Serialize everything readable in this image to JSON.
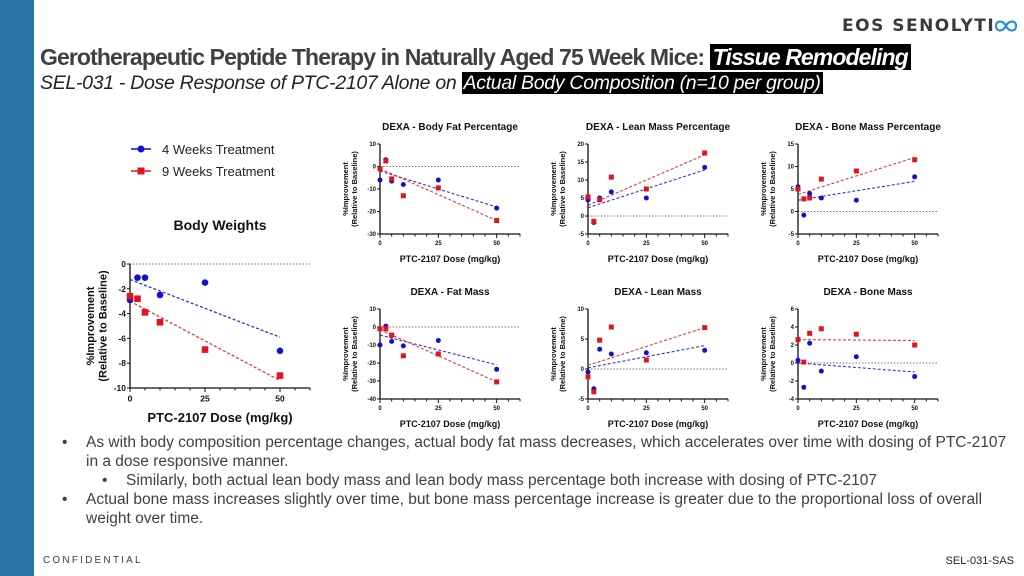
{
  "header": {
    "logo_text": "EOS SENOLYTI",
    "title_plain": "Gerotherapeutic Peptide Therapy in Naturally Aged 75 Week Mice: ",
    "title_highlight": "Tissue Remodeling",
    "subtitle_plain": "SEL-031 - Dose Response of PTC-2107 Alone on ",
    "subtitle_highlight": "Actual Body Composition (n=10 per group)"
  },
  "legend": {
    "items": [
      {
        "label": "4 Weeks Treatment",
        "color": "#1010D0",
        "marker": "circle"
      },
      {
        "label": "9 Weeks Treatment",
        "color": "#E0141E",
        "marker": "square"
      }
    ]
  },
  "chart_data": [
    {
      "id": "body-weights",
      "type": "scatter",
      "title": "Body Weights",
      "xlabel": "PTC-2107 Dose (mg/kg)",
      "ylabel": "%Improvement (Relative to Baseline)",
      "xlim": [
        0,
        60
      ],
      "xticks": [
        0,
        25,
        50
      ],
      "ylim": [
        -10,
        0
      ],
      "yticks": [
        0,
        -2,
        -4,
        -6,
        -8,
        -10
      ],
      "reference_line": 0,
      "x": [
        0,
        2.5,
        5,
        10,
        25,
        50
      ],
      "series": [
        {
          "name": "4 Weeks Treatment",
          "color": "#1010D0",
          "marker": "circle",
          "values": [
            -2.9,
            -1.1,
            -1.1,
            -2.5,
            -1.5,
            -7.0
          ],
          "trend": [
            -1.25,
            -5.9
          ]
        },
        {
          "name": "9 Weeks Treatment",
          "color": "#E0141E",
          "marker": "square",
          "values": [
            -2.6,
            -2.8,
            -3.9,
            -4.7,
            -6.9,
            -9.0
          ],
          "trend": [
            -3.0,
            -9.4
          ]
        }
      ]
    },
    {
      "id": "dexa-body-fat-percentage",
      "type": "scatter",
      "title": "DEXA - Body Fat Percentage",
      "xlabel": "PTC-2107 Dose (mg/kg)",
      "ylabel": "%Improvement (Relative to Baseline)",
      "xlim": [
        0,
        60
      ],
      "xticks": [
        0,
        25,
        50
      ],
      "ylim": [
        -30,
        10
      ],
      "yticks": [
        10,
        0,
        -10,
        -20,
        -30
      ],
      "reference_line": 0,
      "x": [
        0,
        2.5,
        5,
        10,
        25,
        50
      ],
      "series": [
        {
          "name": "4 Weeks Treatment",
          "color": "#1010D0",
          "marker": "circle",
          "values": [
            -6,
            3,
            -6.5,
            -8,
            -6,
            -18.5
          ],
          "trend": [
            -2.0,
            -18.0
          ]
        },
        {
          "name": "9 Weeks Treatment",
          "color": "#E0141E",
          "marker": "square",
          "values": [
            -1,
            2.5,
            -5.5,
            -13,
            -9.5,
            -24
          ],
          "trend": [
            -1.0,
            -24.0
          ]
        }
      ]
    },
    {
      "id": "dexa-lean-mass-percentage",
      "type": "scatter",
      "title": "DEXA - Lean Mass Percentage",
      "xlabel": "PTC-2107 Dose (mg/kg)",
      "ylabel": "%Improvement (Relative to Baseline)",
      "xlim": [
        0,
        60
      ],
      "xticks": [
        0,
        25,
        50
      ],
      "ylim": [
        -5,
        20
      ],
      "yticks": [
        20,
        15,
        10,
        5,
        0,
        -5
      ],
      "reference_line": 0,
      "x": [
        0,
        2.5,
        5,
        10,
        25,
        50
      ],
      "series": [
        {
          "name": "4 Weeks Treatment",
          "color": "#1010D0",
          "marker": "circle",
          "values": [
            4.5,
            -1.8,
            5,
            6.7,
            5,
            13.5
          ],
          "trend": [
            2.3,
            12.8
          ]
        },
        {
          "name": "9 Weeks Treatment",
          "color": "#E0141E",
          "marker": "square",
          "values": [
            5.3,
            -1.5,
            4.5,
            10.8,
            7.5,
            17.5
          ],
          "trend": [
            3.0,
            17.0
          ]
        }
      ]
    },
    {
      "id": "dexa-bone-mass-percentage",
      "type": "scatter",
      "title": "DEXA - Bone Mass Percentage",
      "xlabel": "PTC-2107 Dose (mg/kg)",
      "ylabel": "%Improvement (Relative to Baseline)",
      "xlim": [
        0,
        60
      ],
      "xticks": [
        0,
        25,
        50
      ],
      "ylim": [
        -5,
        15
      ],
      "yticks": [
        15,
        10,
        5,
        0,
        -5
      ],
      "reference_line": 0,
      "x": [
        0,
        2.5,
        5,
        10,
        25,
        50
      ],
      "series": [
        {
          "name": "4 Weeks Treatment",
          "color": "#1010D0",
          "marker": "circle",
          "values": [
            5.5,
            -0.8,
            4,
            3,
            2.5,
            7.7
          ],
          "trend": [
            2.5,
            6.7
          ]
        },
        {
          "name": "9 Weeks Treatment",
          "color": "#E0141E",
          "marker": "square",
          "values": [
            5,
            2.8,
            3,
            7.2,
            9,
            11.5
          ],
          "trend": [
            3.8,
            12.0
          ]
        }
      ]
    },
    {
      "id": "dexa-fat-mass",
      "type": "scatter",
      "title": "DEXA - Fat Mass",
      "xlabel": "PTC-2107 Dose (mg/kg)",
      "ylabel": "%Improvement (Relative to Baseline)",
      "xlim": [
        0,
        60
      ],
      "xticks": [
        0,
        25,
        50
      ],
      "ylim": [
        -40,
        10
      ],
      "yticks": [
        10,
        0,
        -10,
        -20,
        -30,
        -40
      ],
      "reference_line": 0,
      "x": [
        0,
        2.5,
        5,
        10,
        25,
        50
      ],
      "series": [
        {
          "name": "4 Weeks Treatment",
          "color": "#1010D0",
          "marker": "circle",
          "values": [
            -10,
            0.5,
            -8,
            -10.5,
            -7.5,
            -23.5
          ],
          "trend": [
            -4.5,
            -21.0
          ]
        },
        {
          "name": "9 Weeks Treatment",
          "color": "#E0141E",
          "marker": "square",
          "values": [
            -1,
            -1,
            -4.5,
            -16,
            -15,
            -30.5
          ],
          "trend": [
            -1.5,
            -30.5
          ]
        }
      ]
    },
    {
      "id": "dexa-lean-mass",
      "type": "scatter",
      "title": "DEXA - Lean Mass",
      "xlabel": "PTC-2107 Dose (mg/kg)",
      "ylabel": "%Improvement (Relative to Baseline)",
      "xlim": [
        0,
        60
      ],
      "xticks": [
        0,
        25,
        50
      ],
      "ylim": [
        -5,
        10
      ],
      "yticks": [
        10,
        5,
        0,
        -5
      ],
      "reference_line": 0,
      "x": [
        0,
        2.5,
        5,
        10,
        25,
        50
      ],
      "series": [
        {
          "name": "4 Weeks Treatment",
          "color": "#1010D0",
          "marker": "circle",
          "values": [
            -0.5,
            -3.3,
            3.3,
            2.5,
            2.7,
            3.1
          ],
          "trend": [
            0.2,
            3.9
          ]
        },
        {
          "name": "9 Weeks Treatment",
          "color": "#E0141E",
          "marker": "square",
          "values": [
            -1.3,
            -3.8,
            4.8,
            7.0,
            1.5,
            6.9
          ],
          "trend": [
            0.6,
            6.9
          ]
        }
      ]
    },
    {
      "id": "dexa-bone-mass",
      "type": "scatter",
      "title": "DEXA - Bone Mass",
      "xlabel": "PTC-2107 Dose (mg/kg)",
      "ylabel": "%Improvement (Relative to Baseline)",
      "xlim": [
        0,
        60
      ],
      "xticks": [
        0,
        25,
        50
      ],
      "ylim": [
        -4,
        6
      ],
      "yticks": [
        6,
        4,
        2,
        0,
        -2,
        -4
      ],
      "reference_line": 0,
      "x": [
        0,
        2.5,
        5,
        10,
        25,
        50
      ],
      "series": [
        {
          "name": "4 Weeks Treatment",
          "color": "#1010D0",
          "marker": "circle",
          "values": [
            0.3,
            -2.7,
            2.2,
            -0.9,
            0.7,
            -1.5
          ],
          "trend": [
            0.0,
            -1.0
          ]
        },
        {
          "name": "9 Weeks Treatment",
          "color": "#E0141E",
          "marker": "square",
          "values": [
            2.6,
            0.1,
            3.3,
            3.8,
            3.2,
            2.0
          ],
          "trend": [
            2.6,
            2.5
          ]
        }
      ]
    }
  ],
  "bullets": [
    {
      "level": 1,
      "text": "As with body composition percentage changes, actual body fat mass decreases, which accelerates over time with dosing of PTC-2107 in a dose responsive manner."
    },
    {
      "level": 2,
      "text": "Similarly, both actual lean body mass and lean body mass percentage both increase with dosing of PTC-2107"
    },
    {
      "level": 1,
      "text": "Actual bone mass increases slightly over time, but bone mass percentage increase is greater due to the proportional loss of overall weight over time."
    }
  ],
  "footer": {
    "confidential": "CONFIDENTIAL",
    "code": "SEL-031-SAS"
  }
}
